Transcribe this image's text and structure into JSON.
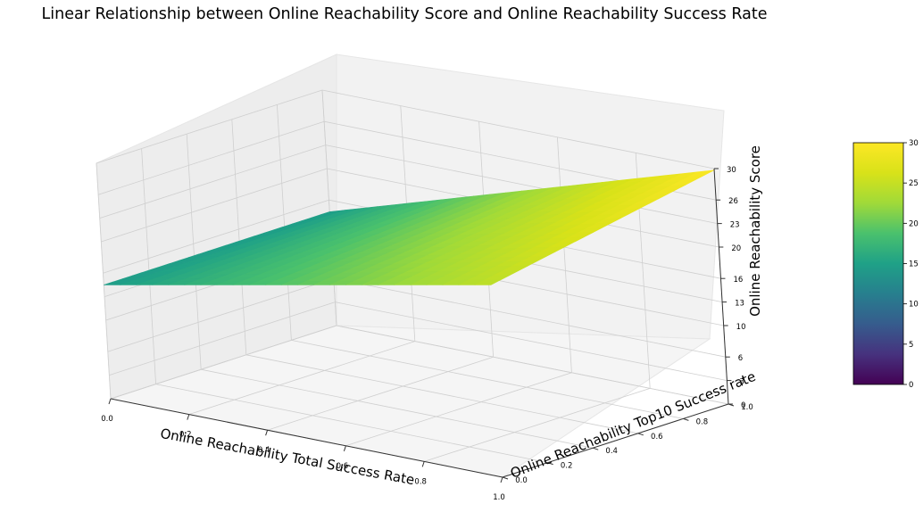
{
  "chart_data": {
    "type": "surface",
    "title": "Linear Relationship between Online Reachability Score and Online Reachability Success Rate",
    "xlabel": "Online Reachability Total Success Rate",
    "ylabel": "Online Reachability Top10 Success rate",
    "zlabel": "Online Reachability Score",
    "xlim": [
      0,
      1
    ],
    "ylim": [
      0,
      1
    ],
    "zlim": [
      0,
      30
    ],
    "x_ticks": [
      "0.0",
      "0.2",
      "0.4",
      "0.6",
      "0.8",
      "1.0"
    ],
    "y_ticks": [
      "0.0",
      "0.2",
      "0.4",
      "0.6",
      "0.8",
      "1.0"
    ],
    "z_ticks": [
      "0",
      "3",
      "6",
      "10",
      "13",
      "16",
      "20",
      "23",
      "26",
      "30"
    ],
    "colorbar": {
      "colormap": "viridis",
      "range": [
        0,
        30
      ],
      "ticks": [
        "0",
        "5",
        "10",
        "15",
        "20",
        "25",
        "30"
      ]
    },
    "surface_corners": [
      {
        "x": 0,
        "y": 0,
        "z": 14.5
      },
      {
        "x": 1,
        "y": 0,
        "z": 24.5
      },
      {
        "x": 0,
        "y": 1,
        "z": 14.5
      },
      {
        "x": 1,
        "y": 1,
        "z": 29.8
      }
    ],
    "grid": true
  }
}
